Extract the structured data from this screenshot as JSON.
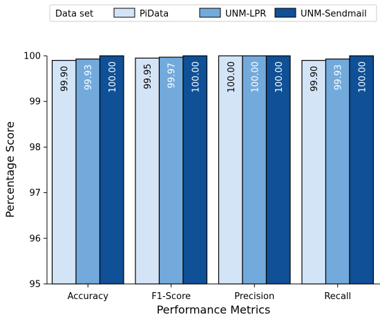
{
  "chart_data": {
    "type": "bar",
    "title": "",
    "xlabel": "Performance Metrics",
    "ylabel": "Percentage Score",
    "categories": [
      "Accuracy",
      "F1-Score",
      "Precision",
      "Recall"
    ],
    "ylim": [
      95,
      100
    ],
    "yticks": [
      "95",
      "96",
      "97",
      "98",
      "99",
      "100"
    ],
    "legend_title": "Data set",
    "legend_position": "top",
    "grid": false,
    "series": [
      {
        "name": "PiData",
        "color": "#d4e4f7",
        "label_color": "#000000",
        "values": [
          99.9,
          99.95,
          100.0,
          99.9
        ],
        "labels": [
          "99.90",
          "99.95",
          "100.00",
          "99.90"
        ]
      },
      {
        "name": "UNM-LPR",
        "color": "#73aadc",
        "label_color": "#ffffff",
        "values": [
          99.93,
          99.97,
          100.0,
          99.93
        ],
        "labels": [
          "99.93",
          "99.97",
          "100.00",
          "99.93"
        ]
      },
      {
        "name": "UNM-Sendmail",
        "color": "#0f5096",
        "label_color": "#ffffff",
        "values": [
          100.0,
          100.0,
          100.0,
          100.0
        ],
        "labels": [
          "100.00",
          "100.00",
          "100.00",
          "100.00"
        ]
      }
    ]
  }
}
